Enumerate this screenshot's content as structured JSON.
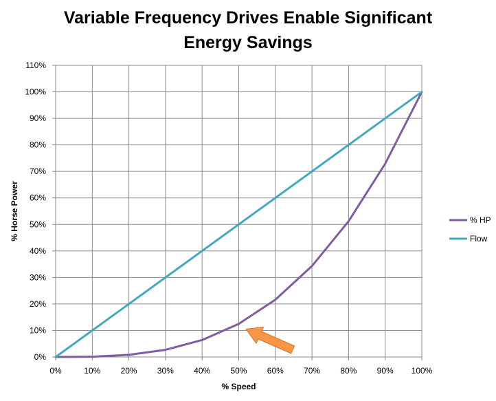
{
  "chart_data": {
    "type": "line",
    "title_lines": [
      "Variable Frequency Drives Enable Significant",
      "Energy Savings"
    ],
    "xlabel": "% Speed",
    "ylabel": "% Horse Power",
    "x": [
      0,
      10,
      20,
      30,
      40,
      50,
      60,
      70,
      80,
      90,
      100
    ],
    "x_tick_labels": [
      "0%",
      "10%",
      "20%",
      "30%",
      "40%",
      "50%",
      "60%",
      "70%",
      "80%",
      "90%",
      "100%"
    ],
    "y_tick_labels": [
      "0%",
      "10%",
      "20%",
      "30%",
      "40%",
      "50%",
      "60%",
      "70%",
      "80%",
      "90%",
      "100%",
      "110%"
    ],
    "xlim": [
      0,
      100
    ],
    "ylim": [
      0,
      110
    ],
    "grid": true,
    "legend_position": "right",
    "series": [
      {
        "name": "% HP",
        "color": "#7f5ca4",
        "values": [
          0,
          0.1,
          0.8,
          2.7,
          6.4,
          12.5,
          21.6,
          34.3,
          51.2,
          72.9,
          100
        ]
      },
      {
        "name": "Flow",
        "color": "#44a8bf",
        "values": [
          0,
          10,
          20,
          30,
          40,
          50,
          60,
          70,
          80,
          90,
          100
        ]
      }
    ],
    "annotations": [
      {
        "type": "arrow",
        "color": "#f79646",
        "points_to": {
          "x": 52,
          "y": 10.5
        }
      }
    ]
  }
}
